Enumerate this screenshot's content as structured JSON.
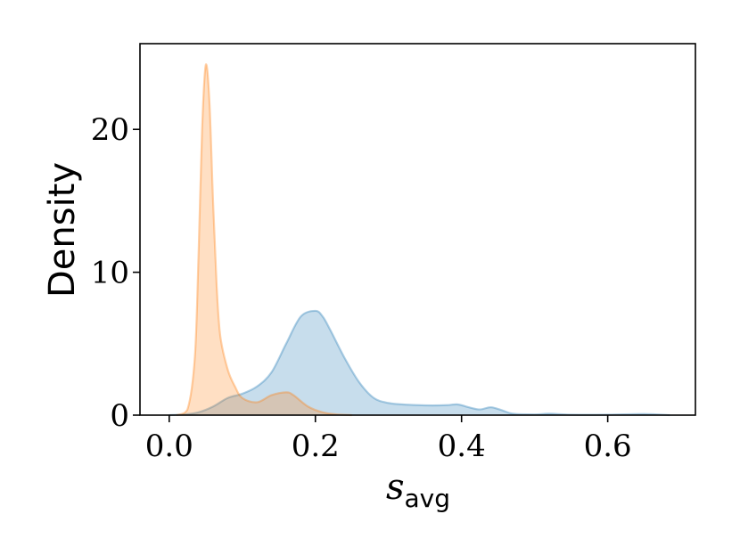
{
  "chart_data": {
    "type": "area",
    "title": "",
    "xlabel": {
      "main": "s",
      "sub": "avg"
    },
    "ylabel": "Density",
    "xlim": [
      -0.04,
      0.72
    ],
    "ylim": [
      0,
      26
    ],
    "xticks": [
      0.0,
      0.2,
      0.4,
      0.6
    ],
    "xtick_labels": [
      "0.0",
      "0.2",
      "0.4",
      "0.6"
    ],
    "yticks": [
      0,
      10,
      20
    ],
    "ytick_labels": [
      "0",
      "10",
      "20"
    ],
    "grid": false,
    "legend": "none",
    "series": [
      {
        "color": "#1f77b4",
        "x": [
          0.0,
          0.02,
          0.04,
          0.06,
          0.08,
          0.1,
          0.12,
          0.14,
          0.16,
          0.18,
          0.2,
          0.21,
          0.22,
          0.24,
          0.26,
          0.28,
          0.3,
          0.32,
          0.34,
          0.36,
          0.38,
          0.395,
          0.41,
          0.425,
          0.44,
          0.455,
          0.47,
          0.5,
          0.52,
          0.55,
          0.6,
          0.65,
          0.685
        ],
        "y": [
          0.0,
          0.05,
          0.2,
          0.6,
          1.2,
          1.5,
          2.0,
          3.0,
          5.0,
          6.9,
          7.3,
          6.9,
          6.0,
          4.0,
          2.3,
          1.2,
          0.85,
          0.75,
          0.7,
          0.68,
          0.7,
          0.75,
          0.55,
          0.4,
          0.55,
          0.35,
          0.1,
          0.05,
          0.1,
          0.03,
          0.03,
          0.08,
          0.0
        ]
      },
      {
        "color": "#ff7f0e",
        "x": [
          0.01,
          0.025,
          0.035,
          0.04,
          0.045,
          0.05,
          0.055,
          0.06,
          0.065,
          0.07,
          0.08,
          0.09,
          0.1,
          0.12,
          0.14,
          0.16,
          0.17,
          0.19,
          0.21,
          0.23,
          0.25
        ],
        "y": [
          0.0,
          0.4,
          4.0,
          11.0,
          20.0,
          24.5,
          22.0,
          15.0,
          9.0,
          5.5,
          3.2,
          2.0,
          1.2,
          0.9,
          1.4,
          1.6,
          1.4,
          0.6,
          0.2,
          0.05,
          0.0
        ]
      }
    ]
  }
}
